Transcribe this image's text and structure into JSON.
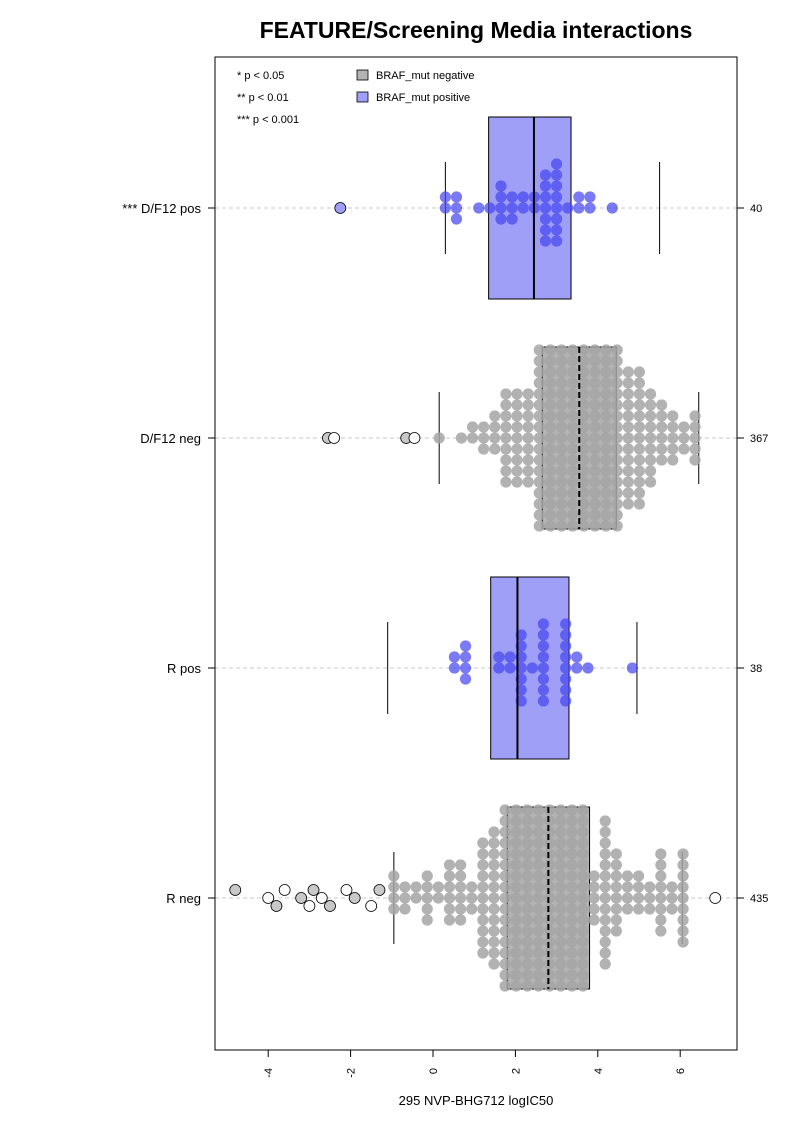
{
  "chart_data": {
    "type": "boxplot",
    "title": "FEATURE/Screening Media interactions",
    "xlabel": "295 NVP-BHG712 logIC50",
    "xlim": [
      -5.3,
      7.3
    ],
    "x_ticks": [
      "-4",
      "-2",
      "0",
      "2",
      "4",
      "6"
    ],
    "orientation": "horizontal",
    "legend_placement": "top-left",
    "significance_legend": [
      "* p < 0.05",
      "** p < 0.01",
      "*** p < 0.001"
    ],
    "legend": [
      {
        "label": "BRAF_mut negative",
        "color": "#b3b3b3"
      },
      {
        "label": "BRAF_mut positive",
        "color": "#9f9ff7"
      }
    ],
    "groups": [
      {
        "label": "*** D/F12 pos",
        "count": "40",
        "braf": "positive",
        "q1": 1.35,
        "median": 2.45,
        "q3": 3.35,
        "whisker_low": 0.3,
        "whisker_high": 5.5,
        "outliers": [
          -2.25
        ],
        "n_points": 40
      },
      {
        "label": "D/F12 neg",
        "count": "367",
        "braf": "negative",
        "q1": 2.65,
        "median": 3.55,
        "q3": 4.45,
        "whisker_low": 0.15,
        "whisker_high": 6.45,
        "outliers": [
          -2.55,
          -2.4,
          -0.65,
          -0.45
        ],
        "n_points": 367
      },
      {
        "label": "R pos",
        "count": "38",
        "braf": "positive",
        "q1": 1.4,
        "median": 2.05,
        "q3": 3.3,
        "whisker_low": -1.1,
        "whisker_high": 4.95,
        "outliers": [],
        "n_points": 38
      },
      {
        "label": "R neg",
        "count": "435",
        "braf": "negative",
        "q1": 1.8,
        "median": 2.8,
        "q3": 3.8,
        "whisker_low": -0.95,
        "whisker_high": 6.05,
        "outliers": [
          -4.8,
          -4.0,
          -3.8,
          -3.6,
          -3.2,
          -3.0,
          -2.9,
          -2.7,
          -2.5,
          -2.1,
          -1.9,
          -1.5,
          -1.3,
          6.85
        ],
        "n_points": 435
      }
    ]
  }
}
